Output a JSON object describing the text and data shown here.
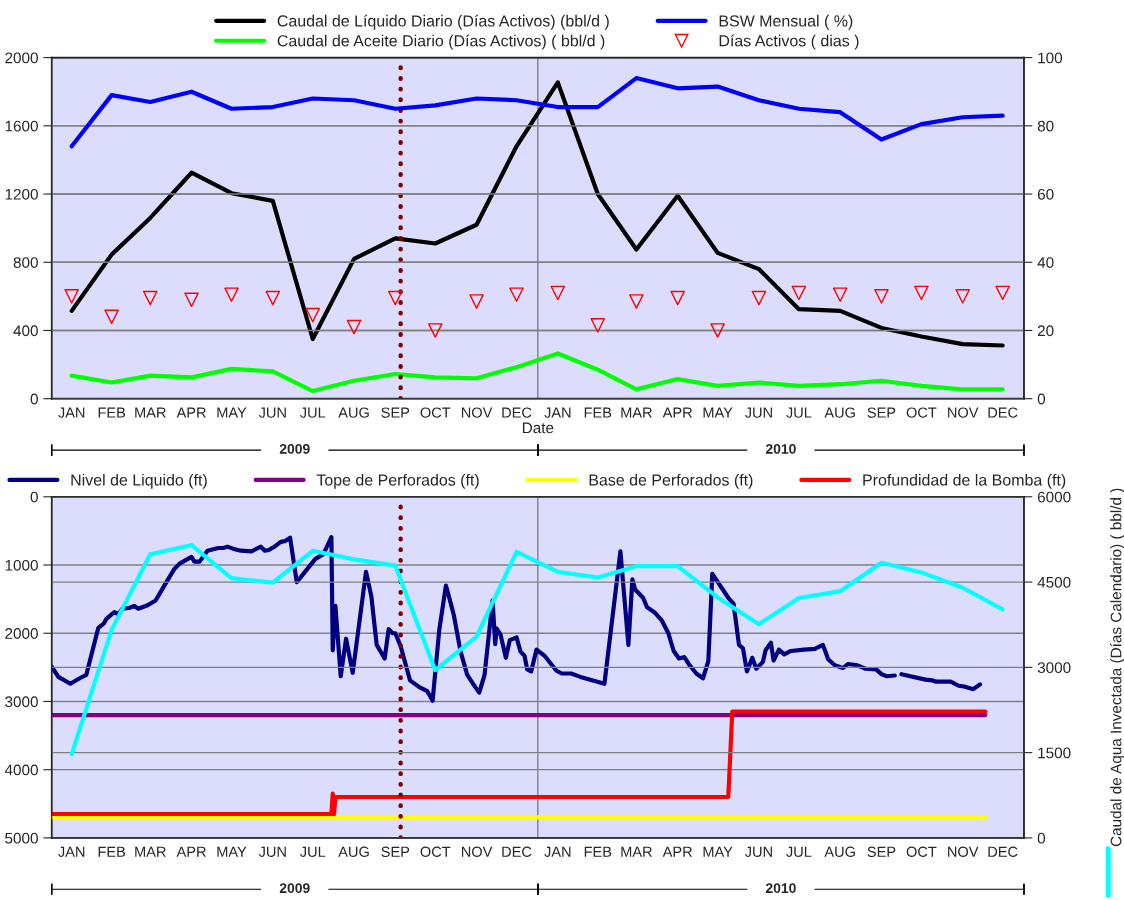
{
  "chart_data": [
    {
      "type": "line",
      "xlabel": "Date",
      "legend": "top",
      "grid": "y",
      "x": [
        "2009-01-16",
        "2009-02-15",
        "2009-03-16",
        "2009-04-16",
        "2009-05-16",
        "2009-06-16",
        "2009-07-16",
        "2009-08-16",
        "2009-09-16",
        "2009-10-16",
        "2009-11-16",
        "2009-12-16",
        "2010-01-16",
        "2010-02-15",
        "2010-03-16",
        "2010-04-16",
        "2010-05-16",
        "2010-06-16",
        "2010-07-16",
        "2010-08-16",
        "2010-09-16",
        "2010-10-16",
        "2010-11-16",
        "2010-12-16"
      ],
      "xlim": [
        "2009-01-01",
        "2011-01-01"
      ],
      "xticks": [
        {
          "value": "2009-01-16",
          "label": "JAN"
        },
        {
          "value": "2009-02-15",
          "label": "FEB"
        },
        {
          "value": "2009-03-16",
          "label": "MAR"
        },
        {
          "value": "2009-04-16",
          "label": "APR"
        },
        {
          "value": "2009-05-16",
          "label": "MAY"
        },
        {
          "value": "2009-06-16",
          "label": "JUN"
        },
        {
          "value": "2009-07-16",
          "label": "JUL"
        },
        {
          "value": "2009-08-16",
          "label": "AUG"
        },
        {
          "value": "2009-09-16",
          "label": "SEP"
        },
        {
          "value": "2009-10-16",
          "label": "OCT"
        },
        {
          "value": "2009-11-16",
          "label": "NOV"
        },
        {
          "value": "2009-12-16",
          "label": "DEC"
        },
        {
          "value": "2010-01-16",
          "label": "JAN"
        },
        {
          "value": "2010-02-15",
          "label": "FEB"
        },
        {
          "value": "2010-03-16",
          "label": "MAR"
        },
        {
          "value": "2010-04-16",
          "label": "APR"
        },
        {
          "value": "2010-05-16",
          "label": "MAY"
        },
        {
          "value": "2010-06-16",
          "label": "JUN"
        },
        {
          "value": "2010-07-16",
          "label": "JUL"
        },
        {
          "value": "2010-08-16",
          "label": "AUG"
        },
        {
          "value": "2010-09-16",
          "label": "SEP"
        },
        {
          "value": "2010-10-16",
          "label": "OCT"
        },
        {
          "value": "2010-11-16",
          "label": "NOV"
        },
        {
          "value": "2010-12-16",
          "label": "DEC"
        }
      ],
      "ylim": [
        0,
        2000
      ],
      "yticks": [
        0,
        400,
        800,
        1200,
        1600,
        2000
      ],
      "y2lim": [
        0,
        100
      ],
      "y2ticks": [
        0,
        20,
        40,
        60,
        80,
        100
      ],
      "ref_lines": [
        {
          "axis": "x",
          "value": "2010-01-01",
          "color": "#808080",
          "line_style": "solid"
        },
        {
          "axis": "x",
          "value": "2009-09-20",
          "color": "#800000",
          "line_style": "dotted"
        }
      ],
      "annotations": [
        "2009",
        "2010"
      ],
      "series": [
        {
          "name": "Caudal de Líquido Diario (Días Activos) (bbl/d )",
          "color": "#000000",
          "values": [
            515,
            845,
            1060,
            1325,
            1205,
            1160,
            350,
            820,
            940,
            910,
            1020,
            1480,
            1855,
            1200,
            875,
            1190,
            855,
            760,
            525,
            515,
            415,
            365,
            320,
            312
          ]
        },
        {
          "name": "Caudal de Aceite Diario (Días Activos) ( bbl/d )",
          "color": "#00ff00",
          "values": [
            135,
            95,
            135,
            125,
            175,
            160,
            45,
            105,
            145,
            125,
            120,
            185,
            265,
            170,
            55,
            115,
            75,
            95,
            75,
            85,
            105,
            75,
            55,
            55
          ]
        },
        {
          "name": "BSW Mensual ( %)",
          "color": "#0000ff",
          "axis": "y2",
          "values": [
            74,
            89,
            87,
            90,
            85,
            85.5,
            88,
            87.5,
            85,
            86,
            88,
            87.5,
            85.5,
            85.5,
            94,
            91,
            91.5,
            87.5,
            85,
            84,
            76,
            80.5,
            82.5,
            83
          ]
        },
        {
          "name": "Días Activos ( dias )",
          "color": "#ff0000",
          "axis": "y2",
          "type": "scatter",
          "marker": "triangle",
          "values": [
            30,
            24,
            29.5,
            29,
            30.5,
            29.5,
            24.5,
            21,
            29.5,
            20,
            28.5,
            30.5,
            31,
            21.5,
            28.5,
            29.5,
            20,
            29.5,
            31,
            30.5,
            30,
            31,
            30,
            31
          ]
        }
      ]
    },
    {
      "type": "line",
      "legend": "top",
      "grid": "y",
      "xlim": [
        "2009-01-01",
        "2011-01-01"
      ],
      "xticks": [
        {
          "value": "2009-01-16",
          "label": "JAN"
        },
        {
          "value": "2009-02-15",
          "label": "FEB"
        },
        {
          "value": "2009-03-16",
          "label": "MAR"
        },
        {
          "value": "2009-04-16",
          "label": "APR"
        },
        {
          "value": "2009-05-16",
          "label": "MAY"
        },
        {
          "value": "2009-06-16",
          "label": "JUN"
        },
        {
          "value": "2009-07-16",
          "label": "JUL"
        },
        {
          "value": "2009-08-16",
          "label": "AUG"
        },
        {
          "value": "2009-09-16",
          "label": "SEP"
        },
        {
          "value": "2009-10-16",
          "label": "OCT"
        },
        {
          "value": "2009-11-16",
          "label": "NOV"
        },
        {
          "value": "2009-12-16",
          "label": "DEC"
        },
        {
          "value": "2010-01-16",
          "label": "JAN"
        },
        {
          "value": "2010-02-15",
          "label": "FEB"
        },
        {
          "value": "2010-03-16",
          "label": "MAR"
        },
        {
          "value": "2010-04-16",
          "label": "APR"
        },
        {
          "value": "2010-05-16",
          "label": "MAY"
        },
        {
          "value": "2010-06-16",
          "label": "JUN"
        },
        {
          "value": "2010-07-16",
          "label": "JUL"
        },
        {
          "value": "2010-08-16",
          "label": "AUG"
        },
        {
          "value": "2010-09-16",
          "label": "SEP"
        },
        {
          "value": "2010-10-16",
          "label": "OCT"
        },
        {
          "value": "2010-11-16",
          "label": "NOV"
        },
        {
          "value": "2010-12-16",
          "label": "DEC"
        }
      ],
      "ylim": [
        5000,
        0
      ],
      "yticks": [
        0,
        1000,
        2000,
        3000,
        4000,
        5000
      ],
      "y2lim": [
        0,
        6000
      ],
      "y2ticks": [
        0,
        1500,
        3000,
        4500,
        6000
      ],
      "y2label": "Caudal de Aqua Invectada (Días Calendario) ( bbl/d )",
      "ref_lines": [
        {
          "axis": "x",
          "value": "2010-01-01",
          "color": "#808080",
          "line_style": "solid"
        },
        {
          "axis": "x",
          "value": "2009-09-20",
          "color": "#800000",
          "line_style": "dotted"
        }
      ],
      "annotations": [
        "2009",
        "2010"
      ],
      "series": [
        {
          "name": "Nivel de Liquido (ft)",
          "color": "#000080",
          "x": [
            "2009-01-01",
            "2009-01-06",
            "2009-01-15",
            "2009-01-22",
            "2009-01-27",
            "2009-02-05",
            "2009-02-09",
            "2009-02-11",
            "2009-02-17",
            "2009-02-20",
            "2009-02-23",
            "2009-02-28",
            "2009-03-04",
            "2009-03-07",
            "2009-03-14",
            "2009-03-20",
            "2009-03-26",
            "2009-04-03",
            "2009-04-07",
            "2009-04-16",
            "2009-04-18",
            "2009-04-22",
            "2009-04-28",
            "2009-05-06",
            "2009-05-10",
            "2009-05-13",
            "2009-05-17",
            "2009-05-23",
            "2009-05-31",
            "2009-06-02",
            "2009-06-07",
            "2009-06-10",
            "2009-06-13",
            "2009-06-18",
            "2009-06-22",
            "2009-06-25",
            "2009-06-29",
            "2009-07-04",
            "2009-07-18",
            "2009-07-24",
            "2009-07-30",
            "2009-07-31",
            "2009-08-02",
            "2009-08-06",
            "2009-08-10",
            "2009-08-15",
            "2009-08-25",
            "2009-08-29",
            "2009-09-02",
            "2009-09-08",
            "2009-09-11",
            "2009-09-14",
            "2009-09-16",
            "2009-09-20",
            "2009-09-27",
            "2009-10-04",
            "2009-10-10",
            "2009-10-14",
            "2009-10-19",
            "2009-10-24",
            "2009-10-28",
            "2009-10-30",
            "2009-11-04",
            "2009-11-09",
            "2009-11-15",
            "2009-11-18",
            "2009-11-22",
            "2009-11-28",
            "2009-11-30",
            "2009-12-01",
            "2009-12-04",
            "2009-12-08",
            "2009-12-11",
            "2009-12-16",
            "2009-12-19",
            "2009-12-22",
            "2009-12-24",
            "2009-12-27",
            "2009-12-31",
            "2010-01-06",
            "2010-01-15",
            "2010-01-19",
            "2010-01-26",
            "2010-02-02",
            "2010-02-20",
            "2010-03-04",
            "2010-03-10",
            "2010-03-13",
            "2010-03-15",
            "2010-03-21",
            "2010-03-24",
            "2010-03-30",
            "2010-04-04",
            "2010-04-09",
            "2010-04-13",
            "2010-04-17",
            "2010-04-21",
            "2010-04-25",
            "2010-04-30",
            "2010-05-05",
            "2010-05-09",
            "2010-05-12",
            "2010-05-24",
            "2010-05-28",
            "2010-06-01",
            "2010-06-04",
            "2010-06-07",
            "2010-06-11",
            "2010-06-14",
            "2010-06-19",
            "2010-06-21",
            "2010-06-25",
            "2010-06-27",
            "2010-07-01",
            "2010-07-05",
            "2010-07-10",
            "2010-07-20",
            "2010-07-28",
            "2010-08-03",
            "2010-08-07",
            "2010-08-12",
            "2010-08-18",
            "2010-08-22",
            "2010-08-29",
            "2010-09-04",
            "2010-09-12",
            "2010-09-16",
            "2010-09-20",
            "2010-09-26",
            "2010-09-28",
            "2010-10-01",
            "2010-10-19",
            "2010-10-24",
            "2010-10-27",
            "2010-11-07",
            "2010-11-13",
            "2010-11-17",
            "2010-11-24",
            "2010-11-29"
          ],
          "values": [
            2490,
            2640,
            2740,
            2660,
            2610,
            1920,
            1860,
            1790,
            1690,
            1720,
            1640,
            1630,
            1600,
            1640,
            1590,
            1520,
            1320,
            1060,
            980,
            880,
            950,
            950,
            790,
            750,
            750,
            730,
            760,
            790,
            800,
            780,
            730,
            790,
            780,
            720,
            660,
            650,
            600,
            1250,
            910,
            840,
            590,
            2250,
            1600,
            2630,
            2080,
            2580,
            1100,
            1460,
            2170,
            2370,
            1940,
            2000,
            2000,
            2190,
            2690,
            2790,
            2850,
            2990,
            1950,
            1300,
            1590,
            1740,
            2270,
            2610,
            2790,
            2870,
            2610,
            1520,
            2160,
            1930,
            2020,
            2360,
            2100,
            2060,
            2270,
            2330,
            2530,
            2560,
            2240,
            2330,
            2550,
            2590,
            2590,
            2640,
            2740,
            800,
            2170,
            1210,
            1360,
            1480,
            1620,
            1700,
            1810,
            2000,
            2260,
            2370,
            2350,
            2470,
            2590,
            2660,
            2410,
            1130,
            1480,
            1570,
            2170,
            2220,
            2560,
            2360,
            2520,
            2420,
            2250,
            2140,
            2400,
            2240,
            2310,
            2260,
            2240,
            2230,
            2170,
            2380,
            2470,
            2510,
            2450,
            2470,
            2520,
            2530,
            2600,
            2630,
            2620,
            null,
            2600,
            2680,
            2690,
            2710,
            2710,
            2770,
            2780,
            2820,
            2750
          ]
        },
        {
          "name": "Tope de Perforados (ft)",
          "color": "#800080",
          "x": [
            "2009-01-01",
            "2010-12-03"
          ],
          "values": [
            3200,
            3200
          ]
        },
        {
          "name": "Base de Perforados (ft)",
          "color": "#ffff00",
          "x": [
            "2009-01-01",
            "2010-12-03"
          ],
          "values": [
            4700,
            4700
          ]
        },
        {
          "name": "Profundidad de la Bomba (ft)",
          "color": "#ff0000",
          "x": [
            "2009-01-01",
            "2009-07-30",
            "2009-07-31",
            "2009-08-01",
            "2009-08-02",
            "2010-05-24",
            "2010-05-27",
            "2010-12-03"
          ],
          "values": [
            4650,
            4650,
            4350,
            4650,
            4400,
            4400,
            3150,
            3150
          ]
        },
        {
          "color": "#00ffff",
          "axis": "y2",
          "x": [
            "2009-01-16",
            "2009-02-15",
            "2009-03-16",
            "2009-04-16",
            "2009-05-16",
            "2009-06-16",
            "2009-07-16",
            "2009-08-16",
            "2009-09-16",
            "2009-10-16",
            "2009-11-16",
            "2009-12-16",
            "2010-01-16",
            "2010-02-15",
            "2010-03-16",
            "2010-04-16",
            "2010-05-16",
            "2010-06-16",
            "2010-07-16",
            "2010-08-16",
            "2010-09-16",
            "2010-10-16",
            "2010-11-16",
            "2010-12-16"
          ],
          "values": [
            1470,
            3660,
            4990,
            5150,
            4570,
            4490,
            5050,
            4900,
            4790,
            2950,
            3540,
            5030,
            4680,
            4580,
            4780,
            4780,
            4230,
            3760,
            4220,
            4340,
            4840,
            4670,
            4400,
            4020
          ]
        }
      ]
    }
  ]
}
